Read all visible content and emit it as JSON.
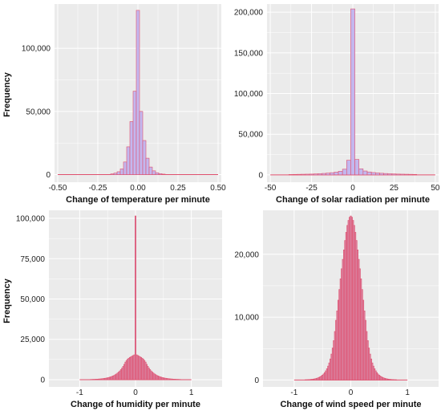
{
  "colors": {
    "panel_background": "#ebebeb",
    "gridline": "#ffffff",
    "bar_fill_temperature_radiation": "#c3b7ee",
    "bar_fill_humidity_wind": "#d98aa8",
    "bar_outline": "#e0506e"
  },
  "chart_data": [
    {
      "type": "bar",
      "subtype": "histogram",
      "xlabel": "Change of temperature per minute",
      "ylabel": "Frequency",
      "xlim": [
        -0.52,
        0.52
      ],
      "ylim": [
        -6000,
        135000
      ],
      "xticks": [
        -0.5,
        -0.25,
        0,
        0.25,
        0.5
      ],
      "xtick_labels": [
        "-0.50",
        "-0.25",
        "0.00",
        "0.25",
        "0.50"
      ],
      "yticks": [
        0,
        50000,
        100000
      ],
      "ytick_labels": [
        "0",
        "50,000",
        "100,000"
      ],
      "grid": true,
      "bin_width": 0.02,
      "x": [
        -0.16,
        -0.14,
        -0.12,
        -0.1,
        -0.08,
        -0.06,
        -0.04,
        -0.02,
        0,
        0.02,
        0.04,
        0.06,
        0.08,
        0.1,
        0.12,
        0.14,
        0.16
      ],
      "values": [
        600,
        1200,
        2300,
        4500,
        10000,
        22000,
        42000,
        66000,
        130000,
        50000,
        27000,
        13000,
        6000,
        3000,
        1500,
        800,
        400
      ]
    },
    {
      "type": "bar",
      "subtype": "histogram",
      "xlabel": "Change of solar radiation per minute",
      "ylabel": "",
      "xlim": [
        -52,
        52
      ],
      "ylim": [
        -9000,
        210000
      ],
      "xticks": [
        -50,
        -25,
        0,
        25,
        50
      ],
      "xtick_labels": [
        "-50",
        "-25",
        "0",
        "25",
        "50"
      ],
      "yticks": [
        0,
        50000,
        100000,
        150000,
        200000
      ],
      "ytick_labels": [
        "0",
        "50,000",
        "100,000",
        "150,000",
        "200,000"
      ],
      "grid": true,
      "bin_width": 2.5,
      "x": [
        -37.5,
        -35,
        -32.5,
        -30,
        -27.5,
        -25,
        -22.5,
        -20,
        -17.5,
        -15,
        -12.5,
        -10,
        -7.5,
        -5,
        -2.5,
        0,
        2.5,
        5,
        7.5,
        10,
        12.5,
        15,
        17.5,
        20,
        22.5,
        25,
        27.5,
        30,
        32.5,
        35,
        37.5
      ],
      "values": [
        500,
        600,
        700,
        800,
        900,
        1000,
        1200,
        1500,
        1800,
        2200,
        2700,
        3400,
        4500,
        7000,
        18000,
        204000,
        19000,
        7500,
        4800,
        3600,
        2900,
        2400,
        2000,
        1700,
        1400,
        1200,
        1000,
        900,
        800,
        700,
        600
      ]
    },
    {
      "type": "bar",
      "subtype": "histogram",
      "xlabel": "Change of humidity per minute",
      "ylabel": "Frequency",
      "xlim": [
        -1.55,
        1.55
      ],
      "ylim": [
        -4500,
        105000
      ],
      "xticks": [
        -1,
        0,
        1
      ],
      "xtick_labels": [
        "-1",
        "0",
        "1"
      ],
      "yticks": [
        0,
        25000,
        50000,
        75000,
        100000
      ],
      "ytick_labels": [
        "0",
        "25,000",
        "50,000",
        "75,000",
        "100,000"
      ],
      "grid": true,
      "bin_width": 0.02,
      "x": [
        -0.8,
        -0.78,
        -0.76,
        -0.74,
        -0.72,
        -0.7,
        -0.68,
        -0.66,
        -0.64,
        -0.62,
        -0.6,
        -0.58,
        -0.56,
        -0.54,
        -0.52,
        -0.5,
        -0.48,
        -0.46,
        -0.44,
        -0.42,
        -0.4,
        -0.38,
        -0.36,
        -0.34,
        -0.32,
        -0.3,
        -0.28,
        -0.26,
        -0.24,
        -0.22,
        -0.2,
        -0.18,
        -0.16,
        -0.14,
        -0.12,
        -0.1,
        -0.08,
        -0.06,
        -0.04,
        -0.02,
        0,
        0.02,
        0.04,
        0.06,
        0.08,
        0.1,
        0.12,
        0.14,
        0.16,
        0.18,
        0.2,
        0.22,
        0.24,
        0.26,
        0.28,
        0.3,
        0.32,
        0.34,
        0.36,
        0.38,
        0.4,
        0.42,
        0.44,
        0.46,
        0.48,
        0.5,
        0.52,
        0.54,
        0.56,
        0.58,
        0.6,
        0.62,
        0.64,
        0.66,
        0.68,
        0.7,
        0.72,
        0.74,
        0.76,
        0.78,
        0.8
      ],
      "values": [
        140,
        160,
        190,
        220,
        250,
        290,
        330,
        380,
        440,
        500,
        580,
        670,
        770,
        880,
        1010,
        1160,
        1340,
        1540,
        1770,
        2040,
        2340,
        2690,
        3100,
        3560,
        4100,
        4720,
        5430,
        6240,
        7180,
        8260,
        9500,
        10900,
        11900,
        12700,
        13300,
        13800,
        14200,
        14600,
        15000,
        15400,
        101500,
        15400,
        15000,
        14600,
        14200,
        13800,
        13300,
        12700,
        11900,
        10900,
        9500,
        8260,
        7180,
        6240,
        5430,
        4720,
        4100,
        3560,
        3100,
        2690,
        2340,
        2040,
        1770,
        1540,
        1340,
        1160,
        1010,
        880,
        770,
        670,
        580,
        500,
        440,
        380,
        330,
        290,
        250,
        220,
        190,
        160,
        140
      ]
    },
    {
      "type": "bar",
      "subtype": "histogram",
      "xlabel": "Change of wind speed per minute",
      "ylabel": "",
      "xlim": [
        -1.55,
        1.55
      ],
      "ylim": [
        -1100,
        27000
      ],
      "xticks": [
        -1,
        0,
        1
      ],
      "xtick_labels": [
        "-1",
        "0",
        "1"
      ],
      "yticks": [
        0,
        10000,
        20000
      ],
      "ytick_labels": [
        "0",
        "10,000",
        "20,000"
      ],
      "grid": true,
      "bin_width": 0.02,
      "x": [
        -0.8,
        -0.78,
        -0.76,
        -0.74,
        -0.72,
        -0.7,
        -0.68,
        -0.66,
        -0.64,
        -0.62,
        -0.6,
        -0.58,
        -0.56,
        -0.54,
        -0.52,
        -0.5,
        -0.48,
        -0.46,
        -0.44,
        -0.42,
        -0.4,
        -0.38,
        -0.36,
        -0.34,
        -0.32,
        -0.3,
        -0.28,
        -0.26,
        -0.24,
        -0.22,
        -0.2,
        -0.18,
        -0.16,
        -0.14,
        -0.12,
        -0.1,
        -0.08,
        -0.06,
        -0.04,
        -0.02,
        0,
        0.02,
        0.04,
        0.06,
        0.08,
        0.1,
        0.12,
        0.14,
        0.16,
        0.18,
        0.2,
        0.22,
        0.24,
        0.26,
        0.28,
        0.3,
        0.32,
        0.34,
        0.36,
        0.38,
        0.4,
        0.42,
        0.44,
        0.46,
        0.48,
        0.5,
        0.52,
        0.54,
        0.56,
        0.58,
        0.6,
        0.62,
        0.64,
        0.66,
        0.68,
        0.7,
        0.72,
        0.74,
        0.76,
        0.78,
        0.8
      ],
      "values": [
        34,
        42,
        52,
        64,
        79,
        97,
        119,
        147,
        181,
        223,
        275,
        339,
        417,
        514,
        633,
        780,
        960,
        1180,
        1460,
        1800,
        2210,
        2720,
        3350,
        4130,
        5090,
        6270,
        7720,
        9500,
        11000,
        12700,
        14400,
        16100,
        17700,
        19200,
        20700,
        22200,
        23500,
        24600,
        25400,
        25900,
        26100,
        25900,
        25400,
        24600,
        23500,
        22200,
        20700,
        19200,
        17700,
        16100,
        14400,
        12700,
        11000,
        9500,
        7720,
        6270,
        5090,
        4130,
        3350,
        2720,
        2210,
        1800,
        1460,
        1180,
        960,
        780,
        633,
        514,
        417,
        339,
        275,
        223,
        181,
        147,
        119,
        97,
        79,
        64,
        52,
        42,
        34
      ]
    }
  ]
}
